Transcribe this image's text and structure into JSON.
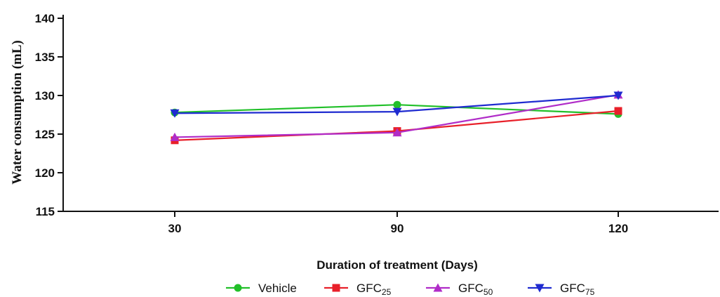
{
  "chart_data": {
    "type": "line",
    "x": [
      "30",
      "90",
      "120"
    ],
    "xlabel": "Duration of treatment (Days)",
    "ylabel": "Water consumption (mL)",
    "ylim": [
      115,
      140
    ],
    "yticks": [
      115,
      120,
      125,
      130,
      135,
      140
    ],
    "grid": false,
    "legend_position": "bottom",
    "series": [
      {
        "name": "Vehicle",
        "name_main": "Vehicle",
        "name_sub": "",
        "color": "#22c02a",
        "marker": "circle",
        "values": [
          127.8,
          128.8,
          127.6
        ]
      },
      {
        "name": "GFC25",
        "name_main": "GFC",
        "name_sub": "25",
        "color": "#e8202a",
        "marker": "square",
        "values": [
          124.2,
          125.4,
          128.0
        ]
      },
      {
        "name": "GFC50",
        "name_main": "GFC",
        "name_sub": "50",
        "color": "#b02cc8",
        "marker": "triangle-up",
        "values": [
          124.6,
          125.2,
          130.1
        ]
      },
      {
        "name": "GFC75",
        "name_main": "GFC",
        "name_sub": "75",
        "color": "#1f2bd0",
        "marker": "triangle-down",
        "values": [
          127.7,
          127.9,
          130.0
        ]
      }
    ]
  }
}
